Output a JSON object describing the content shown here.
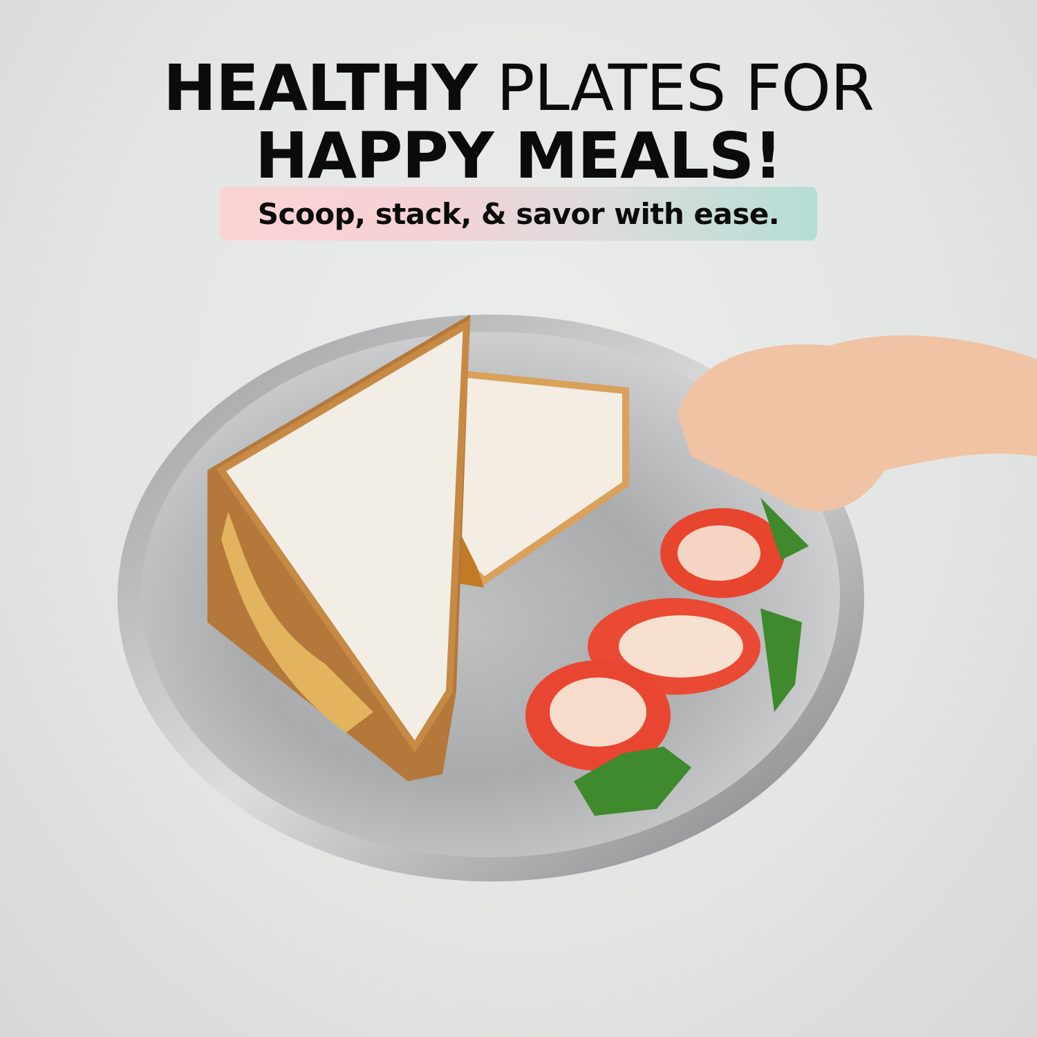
{
  "headline": {
    "line1_bold": "HEALTHY",
    "line1_regular": "PLATES FOR",
    "line2": "HAPPY MEALS!"
  },
  "tagline": "Scoop, stack, & savor with ease.",
  "colors": {
    "text": "#0b0b0b",
    "pill_gradient_start": "#fcd3d3",
    "pill_gradient_end": "#b5ded5",
    "background": "#e6e8e7"
  }
}
